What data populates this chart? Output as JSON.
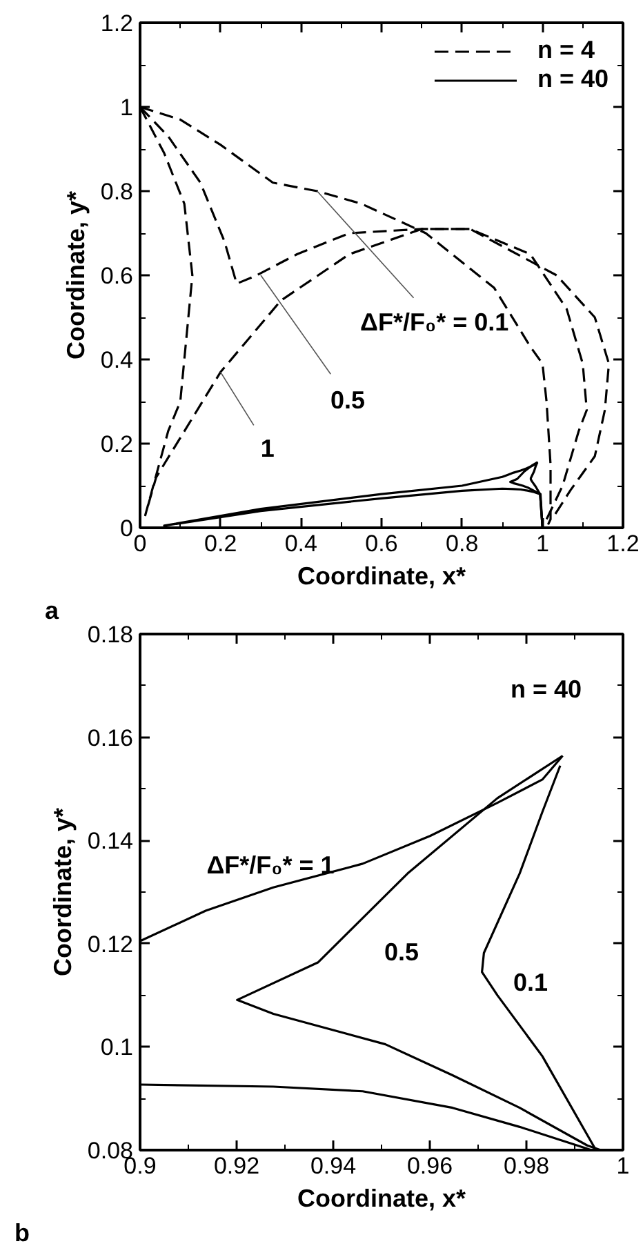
{
  "chart_data": [
    {
      "type": "line",
      "xlabel": "Coordinate, x*",
      "ylabel": "Coordinate, y*",
      "xlim": [
        0,
        1.2
      ],
      "ylim": [
        0,
        1.2
      ],
      "xticks": [
        0,
        0.2,
        0.4,
        0.6,
        0.8,
        1,
        1.2
      ],
      "yticks": [
        0,
        0.2,
        0.4,
        0.6,
        0.8,
        1,
        1.2
      ],
      "legend": "top right",
      "annotations": [
        "a",
        {
          "text": "ΔF*/F₀* = 0.1",
          "x": 0.44,
          "y": 0.8
        },
        {
          "text": "0.5",
          "x": 0.3,
          "y": 0.6
        },
        {
          "text": "1",
          "x": 0.2,
          "y": 0.37
        }
      ],
      "series": [
        {
          "name": "n = 4",
          "color": "#000000",
          "line_style": "dashed",
          "x": [
            0,
            0.1,
            0.2,
            0.33,
            0.44,
            0.55,
            0.71,
            0.88,
            0.97,
            1.0,
            1.01,
            1.02,
            1.02,
            1.01
          ],
          "values": [
            1,
            0.97,
            0.91,
            0.82,
            0.8,
            0.77,
            0.7,
            0.57,
            0.43,
            0.39,
            0.3,
            0.15,
            0.02,
            0.0
          ]
        },
        {
          "color": "#000000",
          "line_style": "dashed",
          "x": [
            0,
            0.07,
            0.15,
            0.21,
            0.24,
            0.29,
            0.39,
            0.52,
            0.7,
            0.82,
            0.97,
            1.06,
            1.1,
            1.11,
            1.09,
            1.05,
            1.01
          ],
          "values": [
            1,
            0.93,
            0.82,
            0.68,
            0.58,
            0.6,
            0.65,
            0.7,
            0.71,
            0.71,
            0.65,
            0.52,
            0.39,
            0.28,
            0.23,
            0.1,
            0.02
          ]
        },
        {
          "color": "#000000",
          "line_style": "dashed",
          "x": [
            0,
            0.06,
            0.11,
            0.13,
            0.12,
            0.1,
            0.07,
            0.013,
            0.04,
            0.2,
            0.35,
            0.52,
            0.7,
            0.82,
            1.035,
            1.13,
            1.165,
            1.155,
            1.13,
            1.07,
            1.03
          ],
          "values": [
            1,
            0.89,
            0.77,
            0.6,
            0.5,
            0.3,
            0.23,
            0.03,
            0.12,
            0.37,
            0.54,
            0.65,
            0.71,
            0.71,
            0.6,
            0.5,
            0.39,
            0.28,
            0.17,
            0.09,
            0.03
          ]
        },
        {
          "name": "n = 40",
          "color": "#000000",
          "line_style": "solid",
          "x": [
            1.0,
            0.994,
            0.983,
            0.974,
            0.971,
            0.971,
            0.979,
            0.983,
            0.987
          ],
          "values": [
            0.0,
            0.08,
            0.098,
            0.11,
            0.115,
            0.118,
            0.134,
            0.146,
            0.155
          ]
        },
        {
          "color": "#000000",
          "line_style": "solid",
          "x": [
            1.0,
            0.995,
            0.993,
            0.979,
            0.965,
            0.951,
            0.928,
            0.92,
            0.937,
            0.955,
            0.974,
            0.988
          ],
          "values": [
            0.0,
            0.08,
            0.081,
            0.088,
            0.095,
            0.1,
            0.106,
            0.109,
            0.116,
            0.134,
            0.148,
            0.156
          ]
        },
        {
          "color": "#000000",
          "line_style": "solid",
          "x": [
            1.0,
            0.994,
            0.979,
            0.965,
            0.946,
            0.928,
            0.9,
            0.8,
            0.6,
            0.3,
            0.06,
            0.3,
            0.6,
            0.8,
            0.9,
            0.914,
            0.928,
            0.946,
            0.96,
            0.974,
            0.983,
            0.988
          ],
          "values": [
            0.0,
            0.08,
            0.085,
            0.088,
            0.091,
            0.092,
            0.093,
            0.088,
            0.07,
            0.04,
            0.005,
            0.045,
            0.08,
            0.1,
            0.121,
            0.126,
            0.131,
            0.136,
            0.141,
            0.147,
            0.152,
            0.156
          ]
        }
      ]
    },
    {
      "type": "line",
      "xlabel": "Coordinate, x*",
      "ylabel": "Coordinate, y*",
      "xlim": [
        0.9,
        1
      ],
      "ylim": [
        0.08,
        0.18
      ],
      "xticks": [
        0.9,
        0.92,
        0.94,
        0.96,
        0.98,
        1
      ],
      "yticks": [
        0.08,
        0.1,
        0.12,
        0.14,
        0.16,
        0.18
      ],
      "legend": "top right",
      "legend_title": "n = 40",
      "annotations": [
        "b",
        {
          "text": "ΔF*/F₀* = 1",
          "x": 0.927,
          "y": 0.131
        },
        {
          "text": "0.5",
          "x": 0.937,
          "y": 0.1164
        },
        {
          "text": "0.1",
          "x": 0.974,
          "y": 0.11
        }
      ],
      "series": [
        {
          "color": "#000000",
          "line_style": "solid",
          "x": [
            0.9944,
            0.9833,
            0.974,
            0.9708,
            0.9712,
            0.9786,
            0.9833,
            0.987
          ],
          "values": [
            0.08,
            0.0982,
            0.11,
            0.1145,
            0.1182,
            0.1336,
            0.1455,
            0.1545
          ]
        },
        {
          "color": "#000000",
          "line_style": "solid",
          "x": [
            0.9954,
            0.9926,
            0.9786,
            0.9647,
            0.9508,
            0.9276,
            0.9201,
            0.9369,
            0.9554,
            0.974,
            0.9875
          ],
          "values": [
            0.08,
            0.0809,
            0.0882,
            0.0945,
            0.1005,
            0.1064,
            0.1091,
            0.1164,
            0.1336,
            0.1482,
            0.1564
          ]
        },
        {
          "color": "#000000",
          "line_style": "solid",
          "x": [
            0.9935,
            0.9786,
            0.9647,
            0.9461,
            0.9276,
            0.9
          ],
          "values": [
            0.08,
            0.0845,
            0.0882,
            0.0914,
            0.0923,
            0.0927
          ]
        },
        {
          "color": "#000000",
          "line_style": "solid",
          "x": [
            0.9,
            0.9136,
            0.9276,
            0.9461,
            0.9601,
            0.974,
            0.9833,
            0.9875
          ],
          "values": [
            0.1205,
            0.1264,
            0.1309,
            0.1355,
            0.1409,
            0.1473,
            0.1518,
            0.1564
          ]
        }
      ]
    }
  ]
}
